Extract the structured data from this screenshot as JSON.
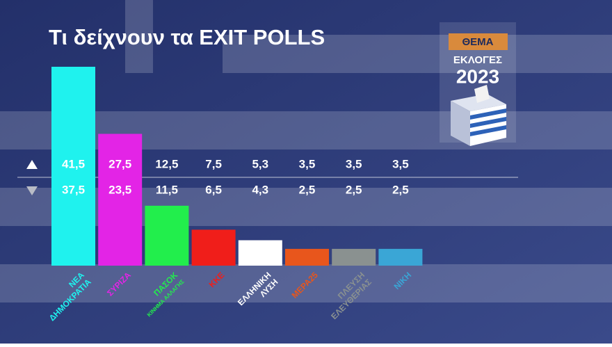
{
  "chart_data": {
    "type": "bar",
    "title": "Τι δείχνουν τα EXIT POLLS",
    "categories": [
      [
        "ΝΕΑ",
        "ΔΗΜΟΚΡΑΤΙΑ"
      ],
      [
        "ΣΥΡΙΖΑ"
      ],
      [
        "ΠΑΣΟΚ",
        "ΚΙΝΗΜΑ ΑΛΛΑΓΗΣ"
      ],
      [
        "ΚΚΕ"
      ],
      [
        "ΕΛΛΗΝΙΚΗ",
        "ΛΥΣΗ"
      ],
      [
        "ΜΕΡΑ25"
      ],
      [
        "ΠΛΕΥΣΗ",
        "ΕΛΕΥΘΕΡΙΑΣ"
      ],
      [
        "ΝΙΚΗ"
      ]
    ],
    "colors": [
      "#1ff2ee",
      "#e324e6",
      "#22ee4c",
      "#f01e1a",
      "#ffffff",
      "#e8561c",
      "#8a9190",
      "#3aa6d6"
    ],
    "series": [
      {
        "values": [
          41.5,
          27.5,
          12.5,
          7.5,
          5.3,
          3.5,
          3.5,
          3.5
        ],
        "value_labels": [
          "41,5",
          "27,5",
          "12,5",
          "7,5",
          "5,3",
          "3,5",
          "3,5",
          "3,5"
        ]
      },
      {
        "values": [
          37.5,
          23.5,
          11.5,
          6.5,
          4.3,
          2.5,
          2.5,
          2.5
        ],
        "value_labels": [
          "37,5",
          "23,5",
          "11,5",
          "6,5",
          "4,3",
          "2,5",
          "2,5",
          "2,5"
        ]
      }
    ]
  },
  "logo": {
    "brand": "ΘΕΜΑ",
    "title": "ΕΚΛΟΓΕΣ",
    "year": "2023"
  }
}
